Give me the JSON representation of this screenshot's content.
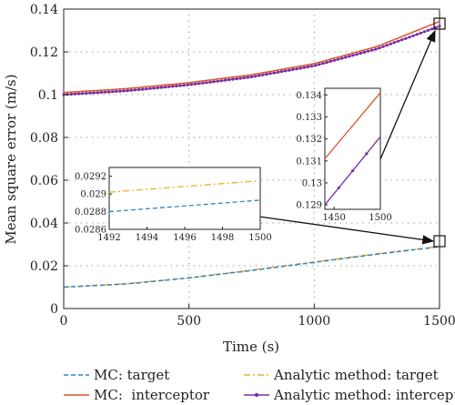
{
  "chart_data": [
    {
      "type": "line",
      "xlabel": "Time (s)",
      "ylabel": "Mean square error (m/s)",
      "xlim": [
        0,
        1500
      ],
      "ylim": [
        0,
        0.14
      ],
      "x_ticks": [
        "0",
        "500",
        "1000",
        "1500"
      ],
      "y_ticks": [
        "0",
        "0.02",
        "0.04",
        "0.06",
        "0.08",
        "0.1",
        "0.12",
        "0.14"
      ],
      "grid": true,
      "grid_style": "dotted",
      "legend_position": "bottom",
      "x": [
        0,
        250,
        500,
        750,
        1000,
        1250,
        1500
      ],
      "series": [
        {
          "name": "MC: target",
          "color": "#2e86c1",
          "style": "dashed",
          "values": [
            0.01,
            0.0115,
            0.0143,
            0.0178,
            0.0216,
            0.0254,
            0.0289
          ]
        },
        {
          "name": "MC:  interceptor",
          "color": "#d9542c",
          "style": "solid",
          "values": [
            0.101,
            0.1028,
            0.1056,
            0.1093,
            0.1145,
            0.1225,
            0.1342
          ]
        },
        {
          "name": "Analytic method: target",
          "color": "#f0b02a",
          "style": "dashdot",
          "values": [
            0.01,
            0.0116,
            0.0144,
            0.018,
            0.0218,
            0.0256,
            0.0291
          ]
        },
        {
          "name": "Analytic method: interceptor",
          "color": "#7b2fa0",
          "style": "solid-marker",
          "values": [
            0.1,
            0.1018,
            0.1046,
            0.1083,
            0.1135,
            0.1214,
            0.132
          ]
        }
      ]
    },
    {
      "type": "line",
      "role": "zoom-inset-target",
      "xlim": [
        1492,
        1500
      ],
      "ylim": [
        0.0286,
        0.0293
      ],
      "x_ticks": [
        "1492",
        "1494",
        "1496",
        "1498",
        "1500"
      ],
      "y_ticks": [
        "0.0286",
        "0.0288",
        "0.029",
        "0.0292"
      ],
      "x": [
        1492,
        1500
      ],
      "series": [
        {
          "name": "Analytic method: target",
          "values": [
            0.02902,
            0.02915
          ]
        },
        {
          "name": "MC: target",
          "values": [
            0.0288,
            0.02893
          ]
        }
      ]
    },
    {
      "type": "line",
      "role": "zoom-inset-interceptor",
      "xlim": [
        1440,
        1500
      ],
      "ylim": [
        0.1288,
        0.1343
      ],
      "x_ticks": [
        "1450",
        "1500"
      ],
      "y_ticks": [
        "0.129",
        "0.13",
        "0.131",
        "0.132",
        "0.133",
        "0.134"
      ],
      "x": [
        1440,
        1500
      ],
      "series": [
        {
          "name": "MC:  interceptor",
          "values": [
            0.1311,
            0.1341
          ]
        },
        {
          "name": "Analytic method: interceptor",
          "values": [
            0.129,
            0.1321
          ]
        }
      ]
    }
  ]
}
